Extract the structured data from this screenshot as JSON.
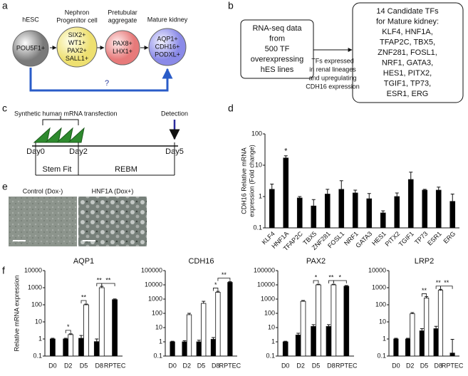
{
  "panel_labels": [
    "a",
    "b",
    "c",
    "d",
    "e",
    "f"
  ],
  "panel_a": {
    "stages": [
      {
        "title": [
          "hESC"
        ],
        "markers": [
          "POU5F1+"
        ]
      },
      {
        "title": [
          "Nephron",
          "Progenitor cell"
        ],
        "markers": [
          "SIX2+",
          "WT1+",
          "PAX2+",
          "SALL1+"
        ]
      },
      {
        "title": [
          "Pretubular",
          "aggregate"
        ],
        "markers": [
          "PAX8+",
          "LHX1+"
        ]
      },
      {
        "title": [
          "Mature kidney"
        ],
        "markers": [
          "AQP1+",
          "CDH16+",
          "PODXL+"
        ]
      }
    ],
    "question": "?"
  },
  "panel_b": {
    "source": [
      "RNA-seq data",
      "from",
      "500 TF",
      "overexpressing",
      "hES lines"
    ],
    "criteria": [
      "TFs expressed",
      "in renal lineages",
      "and upregulating",
      "CDH16 expression"
    ],
    "result": [
      "14 Candidate TFs",
      "for Mature kidney:",
      "KLF4, HNF1A,",
      "TFAP2C, TBX5,",
      "ZNF281, FOSL1,",
      "NRF1, GATA3,",
      "HES1, PITX2,",
      "TGIF1, TP73,",
      "ESR1, ERG"
    ]
  },
  "panel_c": {
    "transfection": "Synthetic human mRNA transfection",
    "detection": "Detection",
    "days": [
      "Day0",
      "Day2",
      "Day5"
    ],
    "media": [
      "Stem Fit",
      "REBM"
    ]
  },
  "panel_e": {
    "titles": [
      "Control (Dox-)",
      "HNF1A (Dox+)"
    ]
  },
  "chart_data": [
    {
      "type": "bar",
      "y_label": [
        "CDH16 Relative mRNA",
        "expression (Fold change)"
      ],
      "categories": [
        "KLF4",
        "HNF1A",
        "TFAP2C",
        "TBX5",
        "ZNF281",
        "FOSL1",
        "NRF1",
        "GATA3",
        "HES1",
        "PITX2",
        "TGIF1",
        "TP73",
        "ESR1",
        "ERG"
      ],
      "values": [
        1.7,
        17,
        0.9,
        0.5,
        1.2,
        1.7,
        1.3,
        0.85,
        0.3,
        1.0,
        3.5,
        1.6,
        1.6,
        0.7
      ],
      "errors": [
        0.8,
        3,
        0.1,
        0.3,
        0.5,
        1.5,
        0.3,
        0.4,
        0.05,
        0.3,
        2.5,
        0.1,
        0.4,
        0.5
      ],
      "color": "#000000",
      "ylim": [
        0.1,
        100
      ],
      "yticks": [
        0.1,
        1,
        10,
        100
      ],
      "log_scale": true,
      "annotations": [
        {
          "text": "*",
          "category": "HNF1A"
        }
      ]
    },
    {
      "type": "bar",
      "title": "AQP1",
      "y_label": "Relative mRNA expression",
      "categories": [
        "D0",
        "D2",
        "D5",
        "D8",
        "RPTEC"
      ],
      "series": [
        {
          "color": "#000000",
          "values": [
            1,
            1,
            1.1,
            0.7,
            200
          ],
          "errors": [
            0.1,
            0.1,
            0.5,
            0.3,
            20
          ]
        },
        {
          "color": "#ffffff",
          "values": [
            null,
            1.8,
            100,
            1000,
            null
          ],
          "errors": [
            null,
            0.2,
            10,
            200,
            null
          ]
        }
      ],
      "ylim": [
        0.1,
        10000
      ],
      "yticks": [
        0.1,
        1,
        10,
        100,
        1000,
        10000
      ],
      "log_scale": true,
      "significance": [
        null,
        "*",
        "**",
        "**",
        "**"
      ]
    },
    {
      "type": "bar",
      "title": "CDH16",
      "categories": [
        "D0",
        "D2",
        "D5",
        "D8",
        "RPTEC"
      ],
      "series": [
        {
          "color": "#000000",
          "values": [
            1,
            1,
            1,
            1.5,
            15000
          ],
          "errors": [
            0.1,
            0.2,
            0.3,
            0.5,
            2000
          ]
        },
        {
          "color": "#ffffff",
          "values": [
            null,
            80,
            500,
            3000,
            null
          ],
          "errors": [
            null,
            20,
            200,
            500,
            null
          ]
        }
      ],
      "ylim": [
        0.1,
        100000
      ],
      "yticks": [
        0.1,
        1,
        10,
        100,
        1000,
        10000,
        100000
      ],
      "log_scale": true,
      "significance": [
        null,
        null,
        null,
        "*",
        "**"
      ]
    },
    {
      "type": "bar",
      "title": "PAX2",
      "categories": [
        "D0",
        "D2",
        "D5",
        "D8",
        "RPTEC"
      ],
      "series": [
        {
          "color": "#000000",
          "values": [
            1,
            3,
            12,
            12,
            8000
          ],
          "errors": [
            0.1,
            1,
            4,
            4,
            1000
          ]
        },
        {
          "color": "#ffffff",
          "values": [
            null,
            700,
            10000,
            10000,
            null
          ],
          "errors": [
            null,
            100,
            1000,
            1000,
            null
          ]
        }
      ],
      "ylim": [
        0.1,
        100000
      ],
      "yticks": [
        0.1,
        1,
        10,
        100,
        1000,
        10000,
        100000
      ],
      "log_scale": true,
      "significance": [
        null,
        null,
        "*",
        "**",
        "*"
      ]
    },
    {
      "type": "bar",
      "title": "LRP2",
      "categories": [
        "D0",
        "D2",
        "D5",
        "D8",
        "RPTEC"
      ],
      "series": [
        {
          "color": "#000000",
          "values": [
            1,
            1,
            3,
            4,
            0.15
          ],
          "errors": [
            0.1,
            0.1,
            1,
            1.5,
            0.8
          ]
        },
        {
          "color": "#ffffff",
          "values": [
            null,
            30,
            250,
            700,
            null
          ],
          "errors": [
            null,
            5,
            50,
            100,
            null
          ]
        }
      ],
      "ylim": [
        0.1,
        10000
      ],
      "yticks": [
        0.1,
        1,
        10,
        100,
        1000,
        10000
      ],
      "log_scale": true,
      "significance": [
        null,
        null,
        "**",
        "**",
        "**"
      ]
    }
  ]
}
